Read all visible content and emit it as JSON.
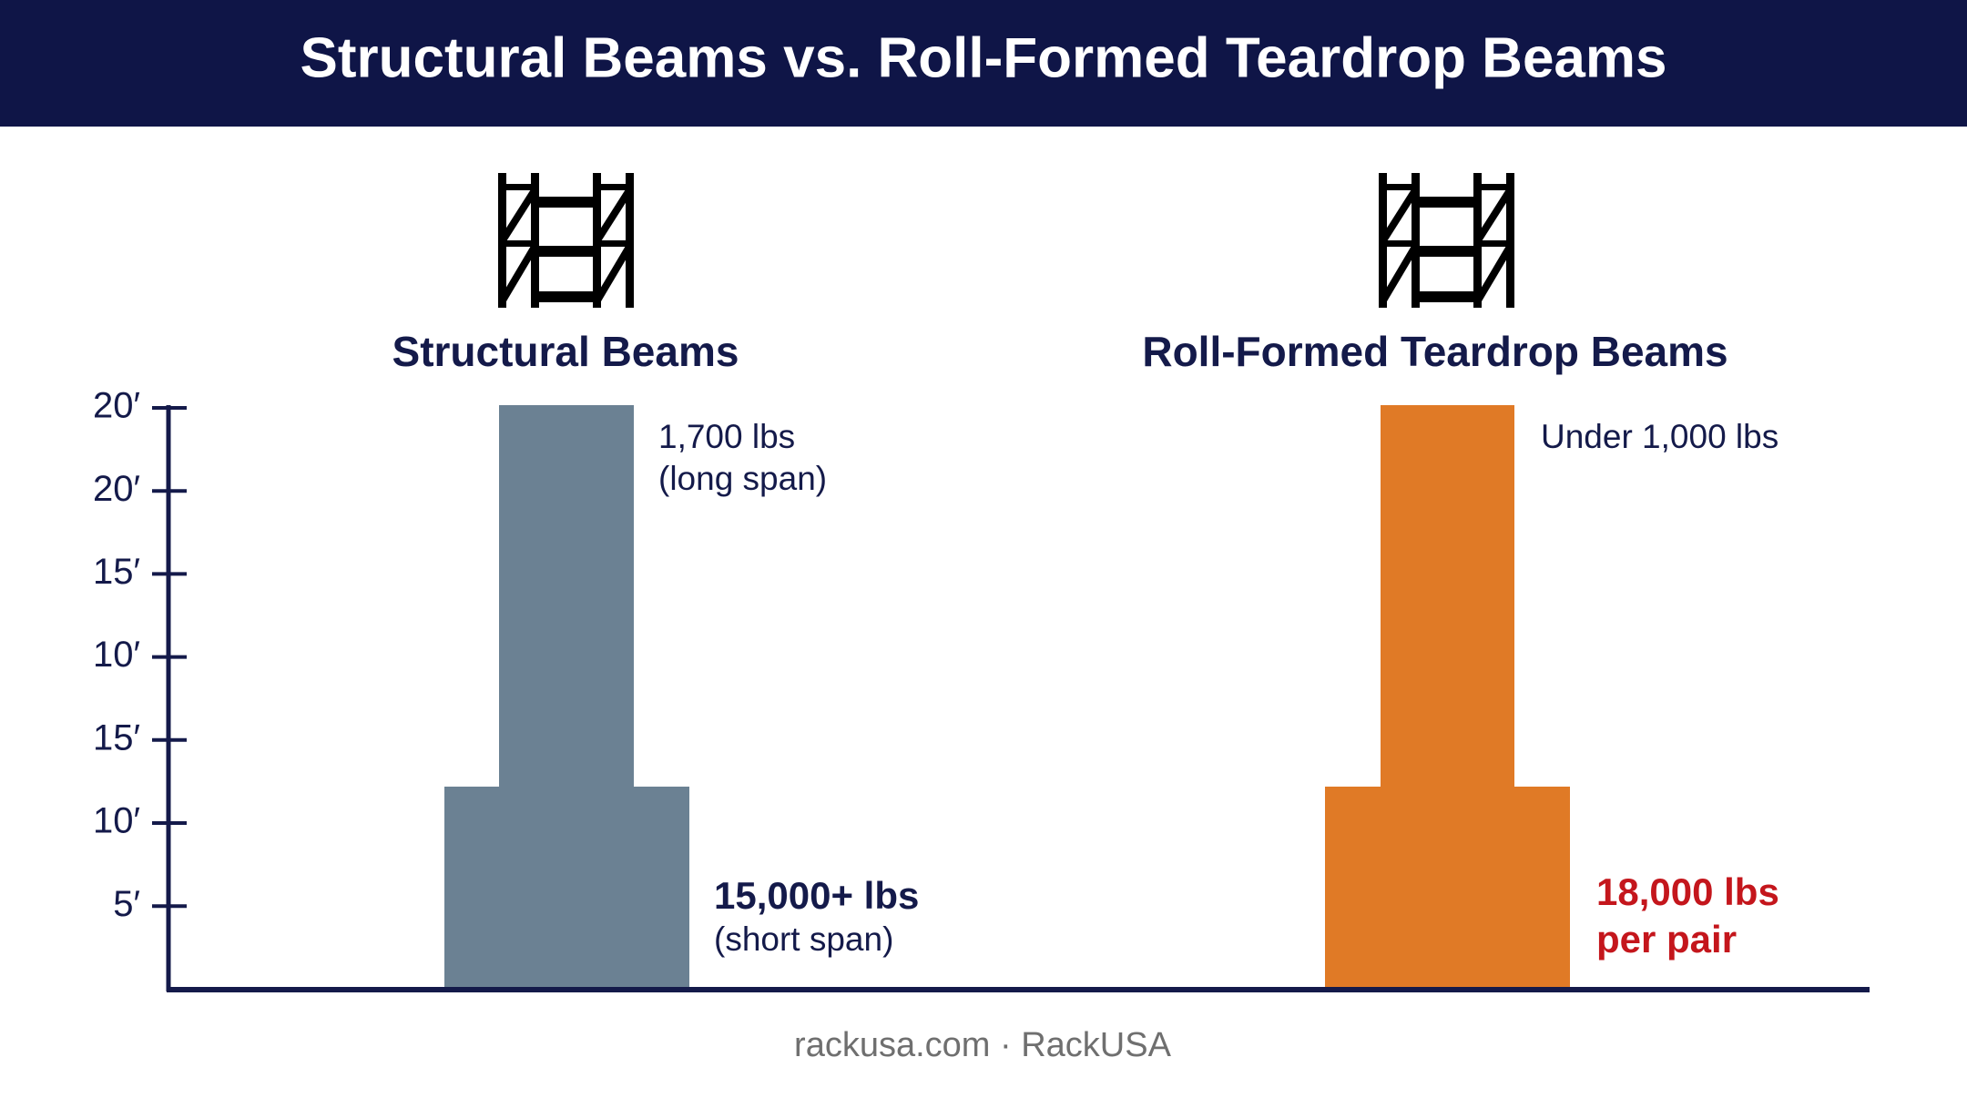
{
  "header": {
    "title": "Structural Beams vs. Roll-Formed Teardrop Beams"
  },
  "axis": {
    "labels": [
      "20′",
      "20′",
      "15′",
      "10′",
      "15′",
      "10′",
      "5′"
    ]
  },
  "panels": [
    {
      "title": "Structural Beams",
      "upper_label": [
        "1,700 lbs",
        "(long span)"
      ],
      "lower_label": [
        "15,000+ lbs",
        "(short span)"
      ]
    },
    {
      "title": "Roll-Formed Teardrop Beams",
      "upper_label": [
        "Under 1,000 lbs"
      ],
      "lower_label": [
        "18,000 lbs",
        "per pair"
      ]
    }
  ],
  "footer": "rackusa.com · RackUSA"
}
